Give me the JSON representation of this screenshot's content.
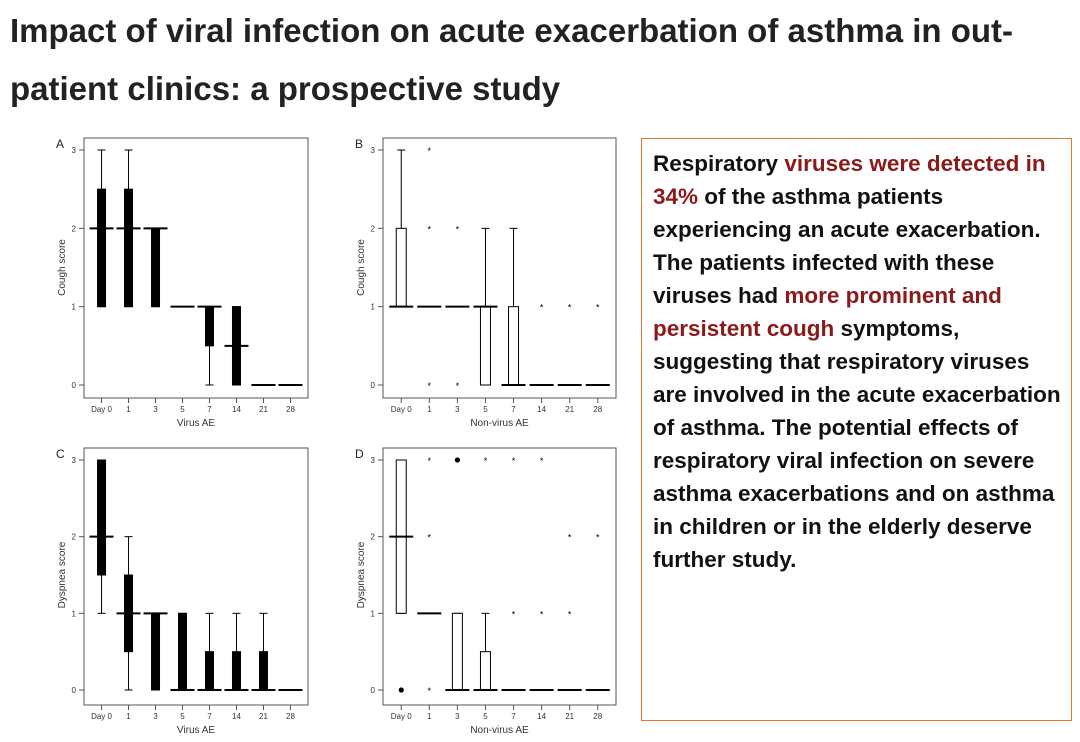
{
  "title": "Impact of viral infection on acute exacerbation of asthma in out-patient clinics: a prospective study",
  "colors": {
    "accent_text": "#8b1a1a",
    "box_border": "#e07a2e"
  },
  "summary": {
    "seg1": "Respiratory ",
    "seg2": "viruses were detected in 34%",
    "seg3": " of the asthma patients experiencing an acute exacerbation. The patients infected with these viruses had ",
    "seg4": "more prominent and persistent cough",
    "seg5": " symptoms, suggesting that respiratory viruses are involved in the acute exacerbation of asthma. The potential effects of respiratory viral infection on severe asthma exacerbations and on asthma in children or in the elderly deserve further study."
  },
  "chart_data": [
    {
      "panel": "A",
      "type": "box",
      "xlabel": "Virus AE",
      "ylabel": "Cough score",
      "ylim": [
        0,
        3
      ],
      "categories": [
        "Day 0",
        "1",
        "3",
        "5",
        "7",
        "14",
        "21",
        "28"
      ],
      "yticks": [
        0,
        1,
        2,
        3
      ],
      "fill": "black",
      "boxes": [
        {
          "min": 1,
          "q1": 1,
          "median": 2,
          "q3": 2.5,
          "max": 3
        },
        {
          "min": 1,
          "q1": 1,
          "median": 2,
          "q3": 2.5,
          "max": 3
        },
        {
          "min": 1,
          "q1": 1,
          "median": 2,
          "q3": 2,
          "max": 2
        },
        {
          "min": 1,
          "q1": 1,
          "median": 1,
          "q3": 1,
          "max": 1
        },
        {
          "min": 0,
          "q1": 0.5,
          "median": 1,
          "q3": 1,
          "max": 1
        },
        {
          "min": 0,
          "q1": 0,
          "median": 0.5,
          "q3": 1,
          "max": 1
        },
        {
          "min": 0,
          "q1": 0,
          "median": 0,
          "q3": 0,
          "max": 0
        },
        {
          "min": 0,
          "q1": 0,
          "median": 0,
          "q3": 0,
          "max": 0
        }
      ],
      "outliers": []
    },
    {
      "panel": "B",
      "type": "box",
      "xlabel": "Non-virus AE",
      "ylabel": "Cough score",
      "ylim": [
        0,
        3
      ],
      "categories": [
        "Day 0",
        "1",
        "3",
        "5",
        "7",
        "14",
        "21",
        "28"
      ],
      "yticks": [
        0,
        1,
        2,
        3
      ],
      "fill": "white",
      "boxes": [
        {
          "min": 1,
          "q1": 1,
          "median": 1,
          "q3": 2,
          "max": 3
        },
        {
          "min": 1,
          "q1": 1,
          "median": 1,
          "q3": 1,
          "max": 1
        },
        {
          "min": 1,
          "q1": 1,
          "median": 1,
          "q3": 1,
          "max": 1
        },
        {
          "min": 0,
          "q1": 0,
          "median": 1,
          "q3": 1,
          "max": 2
        },
        {
          "min": 0,
          "q1": 0,
          "median": 0,
          "q3": 1,
          "max": 2
        },
        {
          "min": 0,
          "q1": 0,
          "median": 0,
          "q3": 0,
          "max": 0
        },
        {
          "min": 0,
          "q1": 0,
          "median": 0,
          "q3": 0,
          "max": 0
        },
        {
          "min": 0,
          "q1": 0,
          "median": 0,
          "q3": 0,
          "max": 0
        }
      ],
      "outliers": [
        {
          "cat": 1,
          "y": 3,
          "marker": "star"
        },
        {
          "cat": 1,
          "y": 2,
          "marker": "star"
        },
        {
          "cat": 1,
          "y": 0,
          "marker": "star"
        },
        {
          "cat": 2,
          "y": 2,
          "marker": "star"
        },
        {
          "cat": 2,
          "y": 0,
          "marker": "star"
        },
        {
          "cat": 5,
          "y": 1,
          "marker": "star"
        },
        {
          "cat": 6,
          "y": 1,
          "marker": "star"
        },
        {
          "cat": 7,
          "y": 1,
          "marker": "star"
        }
      ]
    },
    {
      "panel": "C",
      "type": "box",
      "xlabel": "Virus AE",
      "ylabel": "Dyspnea score",
      "ylim": [
        0,
        3
      ],
      "categories": [
        "Day 0",
        "1",
        "3",
        "5",
        "7",
        "14",
        "21",
        "28"
      ],
      "yticks": [
        0,
        1,
        2,
        3
      ],
      "fill": "black",
      "boxes": [
        {
          "min": 1,
          "q1": 1.5,
          "median": 2,
          "q3": 3,
          "max": 3
        },
        {
          "min": 0,
          "q1": 0.5,
          "median": 1,
          "q3": 1.5,
          "max": 2
        },
        {
          "min": 0,
          "q1": 0,
          "median": 1,
          "q3": 1,
          "max": 1
        },
        {
          "min": 0,
          "q1": 0,
          "median": 0,
          "q3": 1,
          "max": 1
        },
        {
          "min": 0,
          "q1": 0,
          "median": 0,
          "q3": 0.5,
          "max": 1
        },
        {
          "min": 0,
          "q1": 0,
          "median": 0,
          "q3": 0.5,
          "max": 1
        },
        {
          "min": 0,
          "q1": 0,
          "median": 0,
          "q3": 0.5,
          "max": 1
        },
        {
          "min": 0,
          "q1": 0,
          "median": 0,
          "q3": 0,
          "max": 0
        }
      ],
      "outliers": []
    },
    {
      "panel": "D",
      "type": "box",
      "xlabel": "Non-virus AE",
      "ylabel": "Dyspnea score",
      "ylim": [
        0,
        3
      ],
      "categories": [
        "Day 0",
        "1",
        "3",
        "5",
        "7",
        "14",
        "21",
        "28"
      ],
      "yticks": [
        0,
        1,
        2,
        3
      ],
      "fill": "white",
      "boxes": [
        {
          "min": 1,
          "q1": 1,
          "median": 2,
          "q3": 3,
          "max": 3
        },
        {
          "min": 1,
          "q1": 1,
          "median": 1,
          "q3": 1,
          "max": 1
        },
        {
          "min": 0,
          "q1": 0,
          "median": 0,
          "q3": 1,
          "max": 1
        },
        {
          "min": 0,
          "q1": 0,
          "median": 0,
          "q3": 0.5,
          "max": 1
        },
        {
          "min": 0,
          "q1": 0,
          "median": 0,
          "q3": 0,
          "max": 0
        },
        {
          "min": 0,
          "q1": 0,
          "median": 0,
          "q3": 0,
          "max": 0
        },
        {
          "min": 0,
          "q1": 0,
          "median": 0,
          "q3": 0,
          "max": 0
        },
        {
          "min": 0,
          "q1": 0,
          "median": 0,
          "q3": 0,
          "max": 0
        }
      ],
      "outliers": [
        {
          "cat": 0,
          "y": 0,
          "marker": "dot"
        },
        {
          "cat": 1,
          "y": 3,
          "marker": "star"
        },
        {
          "cat": 1,
          "y": 2,
          "marker": "star"
        },
        {
          "cat": 1,
          "y": 0,
          "marker": "star"
        },
        {
          "cat": 2,
          "y": 3,
          "marker": "dot"
        },
        {
          "cat": 3,
          "y": 3,
          "marker": "star"
        },
        {
          "cat": 4,
          "y": 3,
          "marker": "star"
        },
        {
          "cat": 4,
          "y": 1,
          "marker": "star"
        },
        {
          "cat": 5,
          "y": 3,
          "marker": "star"
        },
        {
          "cat": 5,
          "y": 1,
          "marker": "star"
        },
        {
          "cat": 6,
          "y": 2,
          "marker": "star"
        },
        {
          "cat": 6,
          "y": 1,
          "marker": "star"
        },
        {
          "cat": 7,
          "y": 2,
          "marker": "star"
        }
      ]
    }
  ]
}
